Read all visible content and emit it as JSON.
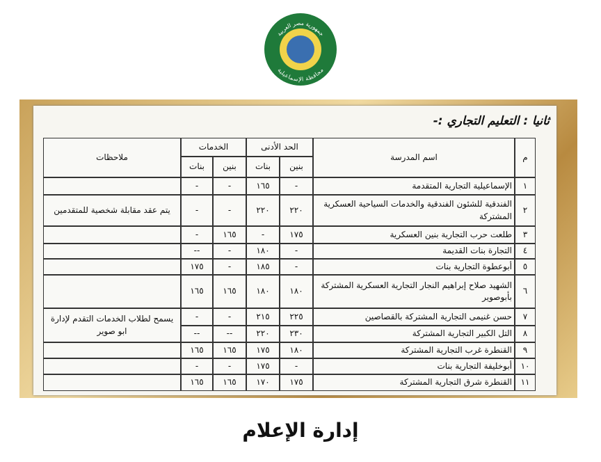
{
  "logo": {
    "top": "جمهورية مصر العربية",
    "bottom": "محافظة الإسماعيلية"
  },
  "section_title": "ثانيا : التعليم التجاري :-",
  "table": {
    "headers": {
      "number": "م",
      "school": "اسم المدرسة",
      "minimum": "الحد الأدنى",
      "services": "الخدمات",
      "minimum_boys": "بنين",
      "minimum_girls": "بنات",
      "services_boys": "بنين",
      "services_girls": "بنات",
      "notes": "ملاحظات"
    },
    "rows": [
      {
        "number": "١",
        "school": "الإسماعيلية التجارية المتقدمة",
        "minimum_boys": "-",
        "minimum_girls": "١٦٥",
        "services_boys": "-",
        "services_girls": "-"
      },
      {
        "number": "٢",
        "school": "الفندقية للشئون الفندقية والخدمات السياحية العسكرية المشتركة",
        "minimum_boys": "٢٢٠",
        "minimum_girls": "٢٢٠",
        "services_boys": "-",
        "services_girls": "-",
        "notes": "يتم عقد مقابلة شخصية للمتقدمين"
      },
      {
        "number": "٣",
        "school": "طلعت حرب التجارية بنين العسكرية",
        "minimum_boys": "١٧٥",
        "minimum_girls": "-",
        "services_boys": "١٦٥",
        "services_girls": "-"
      },
      {
        "number": "٤",
        "school": "التجارة بنات القديمة",
        "minimum_boys": "-",
        "minimum_girls": "١٨٠",
        "services_boys": "-",
        "services_girls": "--"
      },
      {
        "number": "٥",
        "school": "أبوعطوة التجارية بنات",
        "minimum_boys": "-",
        "minimum_girls": "١٨٥",
        "services_boys": "-",
        "services_girls": "١٧٥"
      },
      {
        "number": "٦",
        "school": "الشهيد صلاح إبراهيم النجار التجارية العسكرية المشتركة بأبوصوير",
        "minimum_boys": "١٨٠",
        "minimum_girls": "١٨٠",
        "services_boys": "١٦٥",
        "services_girls": "١٦٥"
      },
      {
        "number": "٧",
        "school": "حسن غنيمى التجارية المشتركة بالقصاصين",
        "minimum_boys": "٢٢٥",
        "minimum_girls": "٢١٥",
        "services_boys": "-",
        "services_girls": "-",
        "notes": "يسمح لطلاب الخدمات التقدم لإدارة ابو صوير"
      },
      {
        "number": "٨",
        "school": "التل الكبير التجارية المشتركة",
        "minimum_boys": "٢٣٠",
        "minimum_girls": "٢٢٠",
        "services_boys": "--",
        "services_girls": "--"
      },
      {
        "number": "٩",
        "school": "القنطرة غرب التجارية المشتركة",
        "minimum_boys": "١٨٠",
        "minimum_girls": "١٧٥",
        "services_boys": "١٦٥",
        "services_girls": "١٦٥"
      },
      {
        "number": "١٠",
        "school": "أبوخليفة التجارية بنات",
        "minimum_boys": "-",
        "minimum_girls": "١٧٥",
        "services_boys": "-",
        "services_girls": "-"
      },
      {
        "number": "١١",
        "school": "القنطرة شرق التجارية المشتركة",
        "minimum_boys": "١٧٥",
        "minimum_girls": "١٧٠",
        "services_boys": "١٦٥",
        "services_girls": "١٦٥"
      }
    ]
  },
  "footer": "إدارة الإعلام"
}
